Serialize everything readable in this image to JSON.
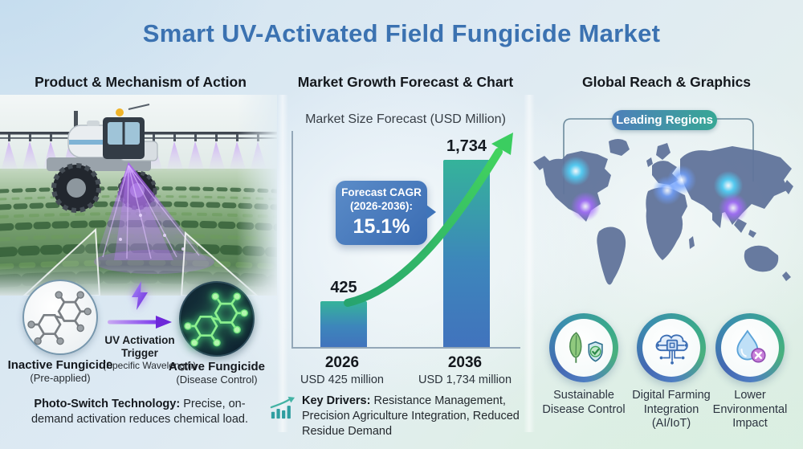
{
  "title": "Smart UV-Activated Field Fungicide Market",
  "left": {
    "header": "Product & Mechanism of Action",
    "scene_description": "UV sprayer tractor applying activating light over crop rows",
    "inactive": {
      "label": "Inactive Fungicide",
      "sub": "(Pre-applied)"
    },
    "trigger": {
      "label": "UV Activation Trigger",
      "sub": "(Specific Wavelength)"
    },
    "active": {
      "label": "Active Fungicide",
      "sub": "(Disease Control)"
    },
    "note": {
      "bold": "Photo-Switch Technology:",
      "text": " Precise, on-demand activation reduces chemical load."
    }
  },
  "middle": {
    "header": "Market Growth Forecast & Chart",
    "cagr": {
      "line1": "Forecast CAGR",
      "line2": "(2026-2036):",
      "value": "15.1%"
    },
    "note": {
      "bold": "Key Drivers:",
      "text": " Resistance Management, Precision Agriculture Integration, Reduced Residue Demand"
    }
  },
  "right": {
    "header": "Global Reach & Graphics",
    "badge": "Leading Regions",
    "features": [
      {
        "icon": "leaf-shield-icon",
        "label": "Sustainable Disease Control"
      },
      {
        "icon": "cloud-chip-icon",
        "label": "Digital Farming Integration (AI/IoT)"
      },
      {
        "icon": "water-drop-x-icon",
        "label": "Lower Environmental Impact"
      }
    ]
  },
  "chart_data": {
    "type": "bar",
    "title": "Market Size Forecast (USD Million)",
    "categories": [
      "2026",
      "2036"
    ],
    "values": [
      425,
      1734
    ],
    "value_labels": [
      "425",
      "1,734"
    ],
    "sublabels": [
      "USD 425 million",
      "USD 1,734 million"
    ],
    "ylim": [
      0,
      2000
    ],
    "grid": false,
    "annotation": "Forecast CAGR (2026-2036): 15.1%",
    "growth_arrow": "green curved arrow from 2026 bar to upper right"
  },
  "icons": {
    "trigger_bolt": "lightning-bolt-icon",
    "trigger_arrow": "right-arrow-icon",
    "key_drivers": "bar-chart-growth-icon",
    "molecule_inactive": "gray-molecule-icon",
    "molecule_active": "glowing-green-molecule-icon",
    "map_markers": [
      "glow-dot-cyan",
      "glow-dot-purple",
      "glow-dot-blue"
    ]
  },
  "colors": {
    "title": "#3b72b1",
    "bar_top": "#35b39a",
    "bar_bottom": "#4173bd",
    "cagr_box": "#3f74b9",
    "growth_arrow": "#38c968",
    "badge_left": "#4e7fba",
    "badge_right": "#37a795",
    "map_fill": "#61749b",
    "uv_purple": "#8b5cf6",
    "ring_teal": "#3aa98c",
    "ring_blue": "#4468b3"
  }
}
